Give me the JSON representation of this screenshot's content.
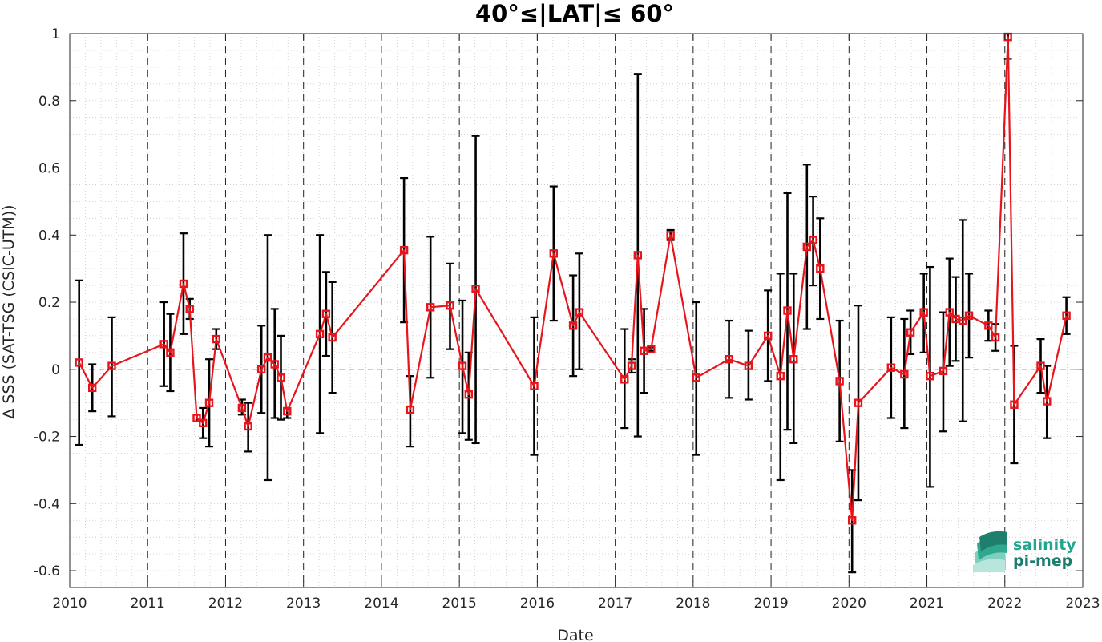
{
  "chart_data": {
    "type": "line",
    "title": "40°≤|LAT|≤ 60°",
    "xlabel": "Date",
    "ylabel": "Δ SSS (SAT-TSG (CSIC-UTM))",
    "xlim": [
      2010.0,
      2023.0
    ],
    "ylim": [
      -0.65,
      1.0
    ],
    "x_ticks": [
      2010,
      2011,
      2012,
      2013,
      2014,
      2015,
      2016,
      2017,
      2018,
      2019,
      2020,
      2021,
      2022,
      2023
    ],
    "x_tick_labels": [
      "2010",
      "2011",
      "2012",
      "2013",
      "2014",
      "2015",
      "2016",
      "2017",
      "2018",
      "2019",
      "2020",
      "2021",
      "2022",
      "2023"
    ],
    "y_ticks": [
      -0.6,
      -0.4,
      -0.2,
      0,
      0.2,
      0.4,
      0.6,
      0.8,
      1
    ],
    "y_tick_labels": [
      "-0.6",
      "-0.4",
      "-0.2",
      "0",
      "0.2",
      "0.4",
      "0.6",
      "0.8",
      "1"
    ],
    "vertical_dashed_lines_at": [
      2011,
      2012,
      2013,
      2014,
      2015,
      2016,
      2017,
      2018,
      2019,
      2020,
      2021,
      2022
    ],
    "zero_reference_line": true,
    "grid": "minor dotted",
    "series_color": "#e8141c",
    "errorbar_color": "#000000",
    "series": [
      {
        "marker": "square",
        "points": [
          {
            "x": 2010.12,
            "y": 0.02,
            "lo": -0.225,
            "hi": 0.265
          },
          {
            "x": 2010.29,
            "y": -0.055,
            "lo": -0.125,
            "hi": 0.015
          },
          {
            "x": 2010.54,
            "y": 0.01,
            "lo": -0.14,
            "hi": 0.155
          },
          {
            "x": 2011.21,
            "y": 0.075,
            "lo": -0.05,
            "hi": 0.2
          },
          {
            "x": 2011.29,
            "y": 0.05,
            "lo": -0.065,
            "hi": 0.165
          },
          {
            "x": 2011.46,
            "y": 0.255,
            "lo": 0.105,
            "hi": 0.405
          },
          {
            "x": 2011.54,
            "y": 0.18,
            "lo": 0.15,
            "hi": 0.21
          },
          {
            "x": 2011.63,
            "y": -0.145,
            "lo": -0.155,
            "hi": -0.135
          },
          {
            "x": 2011.71,
            "y": -0.16,
            "lo": -0.205,
            "hi": -0.115
          },
          {
            "x": 2011.79,
            "y": -0.1,
            "lo": -0.23,
            "hi": 0.03
          },
          {
            "x": 2011.88,
            "y": 0.09,
            "lo": 0.06,
            "hi": 0.12
          },
          {
            "x": 2012.21,
            "y": -0.115,
            "lo": -0.135,
            "hi": -0.09
          },
          {
            "x": 2012.29,
            "y": -0.17,
            "lo": -0.245,
            "hi": -0.1
          },
          {
            "x": 2012.46,
            "y": 0.0,
            "lo": -0.13,
            "hi": 0.13
          },
          {
            "x": 2012.54,
            "y": 0.035,
            "lo": -0.33,
            "hi": 0.4
          },
          {
            "x": 2012.63,
            "y": 0.015,
            "lo": -0.145,
            "hi": 0.18
          },
          {
            "x": 2012.71,
            "y": -0.025,
            "lo": -0.15,
            "hi": 0.1
          },
          {
            "x": 2012.79,
            "y": -0.125,
            "lo": -0.145,
            "hi": -0.115
          },
          {
            "x": 2013.21,
            "y": 0.105,
            "lo": -0.19,
            "hi": 0.4
          },
          {
            "x": 2013.29,
            "y": 0.165,
            "lo": 0.04,
            "hi": 0.29
          },
          {
            "x": 2013.37,
            "y": 0.095,
            "lo": -0.07,
            "hi": 0.26
          },
          {
            "x": 2014.29,
            "y": 0.355,
            "lo": 0.14,
            "hi": 0.57
          },
          {
            "x": 2014.37,
            "y": -0.12,
            "lo": -0.23,
            "hi": -0.02
          },
          {
            "x": 2014.63,
            "y": 0.185,
            "lo": -0.025,
            "hi": 0.395
          },
          {
            "x": 2014.88,
            "y": 0.19,
            "lo": 0.06,
            "hi": 0.315
          },
          {
            "x": 2015.04,
            "y": 0.01,
            "lo": -0.19,
            "hi": 0.205
          },
          {
            "x": 2015.12,
            "y": -0.075,
            "lo": -0.21,
            "hi": 0.05
          },
          {
            "x": 2015.21,
            "y": 0.24,
            "lo": -0.22,
            "hi": 0.695
          },
          {
            "x": 2015.96,
            "y": -0.05,
            "lo": -0.255,
            "hi": 0.155
          },
          {
            "x": 2016.21,
            "y": 0.345,
            "lo": 0.145,
            "hi": 0.545
          },
          {
            "x": 2016.46,
            "y": 0.13,
            "lo": -0.02,
            "hi": 0.28
          },
          {
            "x": 2016.54,
            "y": 0.17,
            "lo": 0.0,
            "hi": 0.345
          },
          {
            "x": 2017.12,
            "y": -0.03,
            "lo": -0.175,
            "hi": 0.12
          },
          {
            "x": 2017.21,
            "y": 0.01,
            "lo": -0.01,
            "hi": 0.03
          },
          {
            "x": 2017.29,
            "y": 0.34,
            "lo": -0.2,
            "hi": 0.88
          },
          {
            "x": 2017.37,
            "y": 0.055,
            "lo": -0.07,
            "hi": 0.18
          },
          {
            "x": 2017.46,
            "y": 0.06,
            "lo": 0.055,
            "hi": 0.065
          },
          {
            "x": 2017.71,
            "y": 0.4,
            "lo": 0.385,
            "hi": 0.415
          },
          {
            "x": 2018.04,
            "y": -0.025,
            "lo": -0.255,
            "hi": 0.2
          },
          {
            "x": 2018.46,
            "y": 0.03,
            "lo": -0.085,
            "hi": 0.145
          },
          {
            "x": 2018.71,
            "y": 0.01,
            "lo": -0.09,
            "hi": 0.115
          },
          {
            "x": 2018.96,
            "y": 0.1,
            "lo": -0.035,
            "hi": 0.235
          },
          {
            "x": 2019.12,
            "y": -0.02,
            "lo": -0.33,
            "hi": 0.285
          },
          {
            "x": 2019.21,
            "y": 0.175,
            "lo": -0.18,
            "hi": 0.525
          },
          {
            "x": 2019.29,
            "y": 0.03,
            "lo": -0.22,
            "hi": 0.285
          },
          {
            "x": 2019.46,
            "y": 0.365,
            "lo": 0.12,
            "hi": 0.61
          },
          {
            "x": 2019.54,
            "y": 0.385,
            "lo": 0.25,
            "hi": 0.515
          },
          {
            "x": 2019.63,
            "y": 0.3,
            "lo": 0.15,
            "hi": 0.45
          },
          {
            "x": 2019.88,
            "y": -0.035,
            "lo": -0.215,
            "hi": 0.145
          },
          {
            "x": 2020.04,
            "y": -0.45,
            "lo": -0.605,
            "hi": -0.3
          },
          {
            "x": 2020.12,
            "y": -0.1,
            "lo": -0.39,
            "hi": 0.19
          },
          {
            "x": 2020.54,
            "y": 0.005,
            "lo": -0.145,
            "hi": 0.155
          },
          {
            "x": 2020.71,
            "y": -0.015,
            "lo": -0.175,
            "hi": 0.15
          },
          {
            "x": 2020.79,
            "y": 0.11,
            "lo": 0.045,
            "hi": 0.175
          },
          {
            "x": 2020.96,
            "y": 0.17,
            "lo": 0.05,
            "hi": 0.285
          },
          {
            "x": 2021.04,
            "y": -0.02,
            "lo": -0.35,
            "hi": 0.305
          },
          {
            "x": 2021.21,
            "y": -0.005,
            "lo": -0.185,
            "hi": 0.17
          },
          {
            "x": 2021.29,
            "y": 0.17,
            "lo": 0.01,
            "hi": 0.33
          },
          {
            "x": 2021.37,
            "y": 0.15,
            "lo": 0.025,
            "hi": 0.275
          },
          {
            "x": 2021.46,
            "y": 0.145,
            "lo": -0.155,
            "hi": 0.445
          },
          {
            "x": 2021.54,
            "y": 0.16,
            "lo": 0.035,
            "hi": 0.285
          },
          {
            "x": 2021.79,
            "y": 0.13,
            "lo": 0.085,
            "hi": 0.175
          },
          {
            "x": 2021.88,
            "y": 0.095,
            "lo": 0.055,
            "hi": 0.135
          },
          {
            "x": 2022.04,
            "y": 0.99,
            "lo": 0.925,
            "hi": 1.0
          },
          {
            "x": 2022.12,
            "y": -0.105,
            "lo": -0.28,
            "hi": 0.07
          },
          {
            "x": 2022.46,
            "y": 0.01,
            "lo": -0.07,
            "hi": 0.09
          },
          {
            "x": 2022.54,
            "y": -0.095,
            "lo": -0.205,
            "hi": 0.01
          },
          {
            "x": 2022.79,
            "y": 0.16,
            "lo": 0.105,
            "hi": 0.215
          }
        ]
      }
    ]
  },
  "logo": {
    "line1": "salinity",
    "line2": "pi-mep",
    "color": "#22a58f",
    "color_dark": "#1b7d6e"
  }
}
